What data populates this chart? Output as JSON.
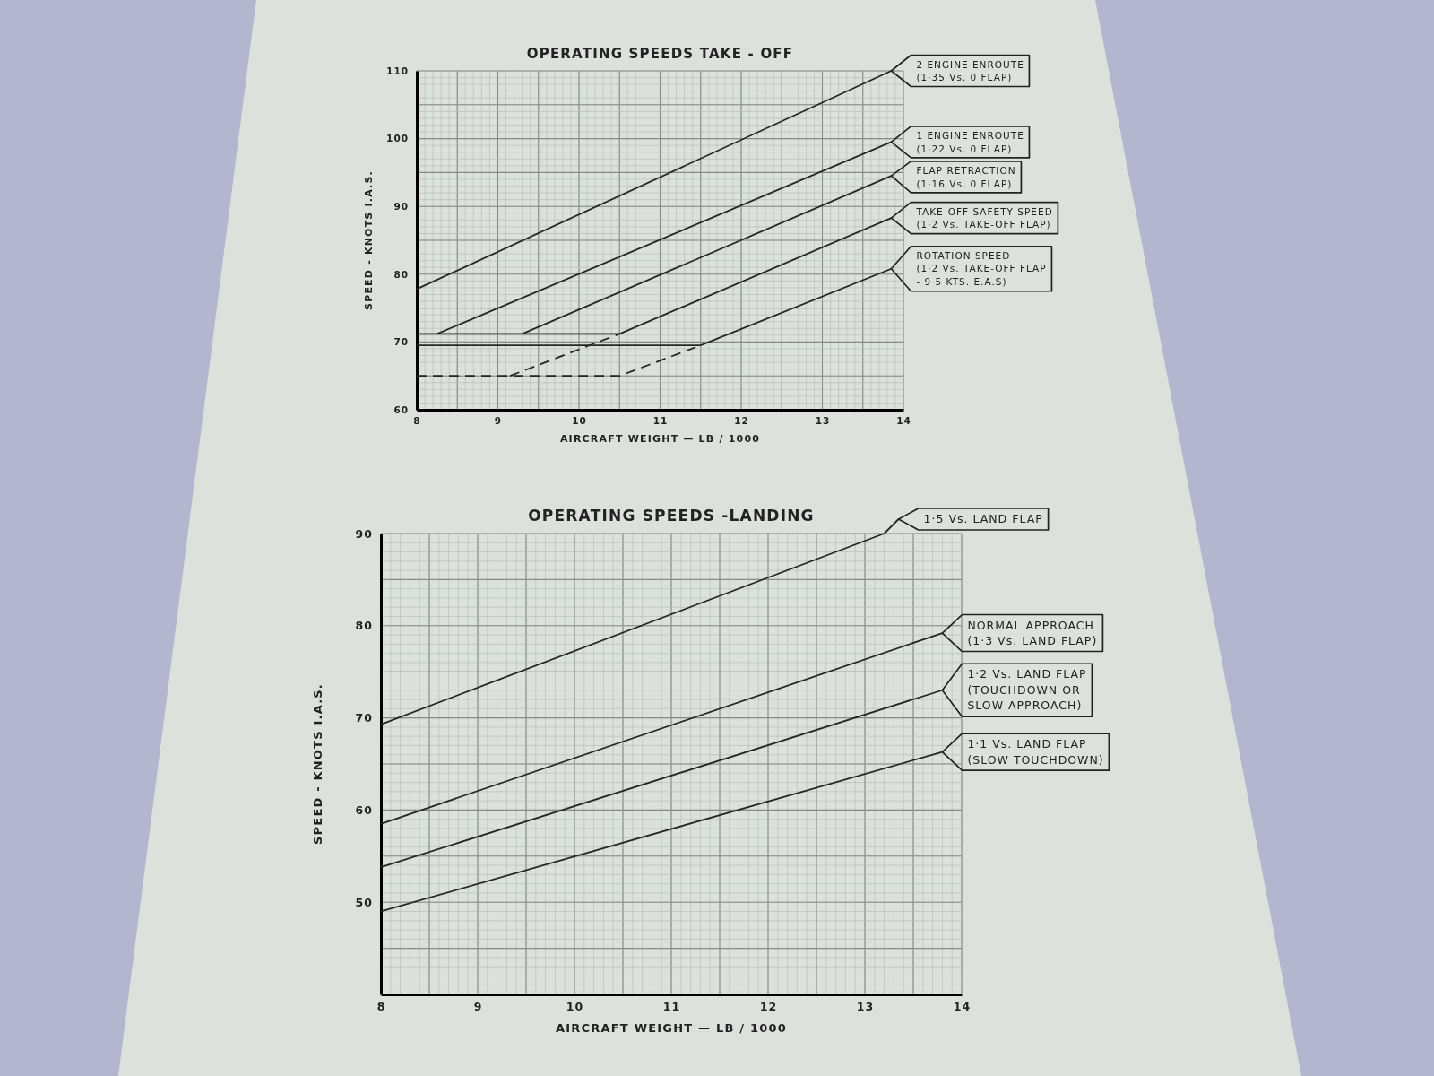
{
  "chart_data": [
    {
      "type": "line",
      "title": "OPERATING SPEEDS TAKE - OFF",
      "xlabel": "AIRCRAFT WEIGHT — LB / 1000",
      "ylabel": "SPEED - KNOTS I.A.S.",
      "xlim": [
        8,
        14
      ],
      "ylim": [
        60,
        110
      ],
      "xticks": [
        8,
        {
          "value": 8.5,
          "label": null
        },
        9,
        {
          "value": 9.5,
          "label": null
        },
        10,
        {
          "value": 10.5,
          "label": null
        },
        11,
        {
          "value": 11.5,
          "label": null
        },
        12,
        {
          "value": 12.5,
          "label": null
        },
        13,
        {
          "value": 13.5,
          "label": null
        },
        14
      ],
      "yticks": [
        60,
        {
          "value": 65,
          "label": null
        },
        70,
        {
          "value": 75,
          "label": null
        },
        80,
        {
          "value": 85,
          "label": null
        },
        90,
        {
          "value": 95,
          "label": null
        },
        100,
        {
          "value": 105,
          "label": null
        },
        110
      ],
      "grid": true,
      "series": [
        {
          "name": "2 ENGINE ENROUTE\n(1·35 Vs. 0 FLAP)",
          "color": "#262626",
          "x": [
            8,
            13.85
          ],
          "values": [
            77.8,
            110
          ]
        },
        {
          "name": "1 ENGINE ENROUTE\n(1·22 Vs. 0 FLAP)",
          "color": "#262626",
          "x": [
            8.25,
            13.85
          ],
          "values": [
            71.2,
            99.5
          ]
        },
        {
          "name": "FLAP RETRACTION\n(1·16 Vs. 0 FLAP)",
          "color": "#262626",
          "x": [
            9.3,
            13.85
          ],
          "values": [
            71.2,
            94.5
          ]
        },
        {
          "name": "TAKE-OFF SAFETY SPEED\n(1·2 Vs. TAKE-OFF FLAP)",
          "color": "#262626",
          "x": [
            10.5,
            13.85
          ],
          "values": [
            71.2,
            88.3
          ]
        },
        {
          "name": "ROTATION SPEED\n(1·2 Vs. TAKE-OFF FLAP\n- 9·5 KTS. E.A.S)",
          "color": "#262626",
          "x": [
            11.5,
            13.85
          ],
          "values": [
            69.5,
            80.8
          ]
        },
        {
          "color": "#262626",
          "x": [
            8,
            10.5
          ],
          "values": [
            71.2,
            71.2
          ]
        },
        {
          "color": "#262626",
          "x": [
            8,
            11.5
          ],
          "values": [
            69.5,
            69.5
          ]
        },
        {
          "color": "#262626",
          "line_style": "dashed",
          "x": [
            9.15,
            10.5
          ],
          "values": [
            65,
            71.2
          ]
        },
        {
          "color": "#262626",
          "line_style": "dashed",
          "x": [
            8,
            10.5,
            11.5
          ],
          "values": [
            65,
            65,
            69.5
          ]
        }
      ]
    },
    {
      "type": "line",
      "title": "OPERATING SPEEDS -LANDING",
      "xlabel": "AIRCRAFT WEIGHT — LB / 1000",
      "ylabel": "SPEED - KNOTS I.A.S.",
      "xlim": [
        8,
        14
      ],
      "ylim": [
        40,
        90
      ],
      "xticks": [
        8,
        {
          "value": 8.5,
          "label": null
        },
        9,
        {
          "value": 9.5,
          "label": null
        },
        10,
        {
          "value": 10.5,
          "label": null
        },
        11,
        {
          "value": 11.5,
          "label": null
        },
        12,
        {
          "value": 12.5,
          "label": null
        },
        13,
        {
          "value": 13.5,
          "label": null
        },
        14
      ],
      "yticks": [
        {
          "value": 45,
          "label": null
        },
        50,
        {
          "value": 55,
          "label": null
        },
        60,
        {
          "value": 65,
          "label": null
        },
        70,
        {
          "value": 75,
          "label": null
        },
        80,
        {
          "value": 85,
          "label": null
        },
        90
      ],
      "grid": true,
      "series": [
        {
          "name": "1·5 Vs. LAND FLAP",
          "color": "#262626",
          "x": [
            8,
            13.2
          ],
          "values": [
            69.3,
            90
          ]
        },
        {
          "name": "NORMAL APPROACH\n(1·3 Vs. LAND FLAP)",
          "color": "#262626",
          "x": [
            8,
            13.8
          ],
          "values": [
            58.5,
            79.2
          ]
        },
        {
          "name": "1·2 Vs. LAND FLAP\n(TOUCHDOWN OR\nSLOW APPROACH)",
          "color": "#262626",
          "x": [
            8,
            13.8
          ],
          "values": [
            53.8,
            73
          ]
        },
        {
          "name": "1·1 Vs. LAND FLAP\n(SLOW TOUCHDOWN)",
          "color": "#262626",
          "x": [
            8,
            13.8
          ],
          "values": [
            49,
            66.3
          ]
        }
      ]
    }
  ]
}
